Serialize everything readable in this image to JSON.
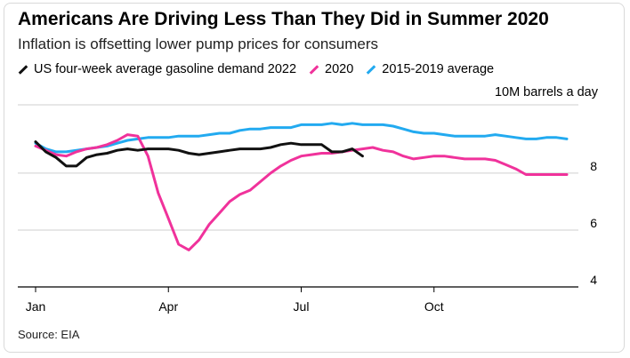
{
  "title": "Americans Are Driving Less Than They Did in Summer 2020",
  "subtitle": "Inflation is offsetting lower pump prices for consumers",
  "source": "Source: EIA",
  "colors": {
    "us2022": "#111111",
    "y2020": "#f0329b",
    "avg": "#22aaf0",
    "grid": "#cfcfcf",
    "axis": "#000000"
  },
  "chart_data": {
    "type": "line",
    "ylabel": "10M barrels a day",
    "ylim": [
      4,
      10.4
    ],
    "yticks": [
      4,
      6,
      8
    ],
    "xlim": [
      1,
      53
    ],
    "xticks": [
      {
        "week": 1,
        "label": "Jan"
      },
      {
        "week": 14,
        "label": "Apr"
      },
      {
        "week": 27,
        "label": "Jul"
      },
      {
        "week": 40,
        "label": "Oct"
      }
    ],
    "legend_position": "top",
    "series": [
      {
        "name": "US four-week average gasoline demand 2022",
        "color_key": "us2022",
        "x": [
          1,
          2,
          3,
          4,
          5,
          6,
          7,
          8,
          9,
          10,
          11,
          12,
          13,
          14,
          15,
          16,
          17,
          18,
          19,
          20,
          21,
          22,
          23,
          24,
          25,
          26,
          27,
          28,
          29,
          30,
          31,
          32,
          33
        ],
        "y": [
          9.1,
          8.75,
          8.55,
          8.25,
          8.25,
          8.55,
          8.65,
          8.7,
          8.8,
          8.85,
          8.8,
          8.85,
          8.85,
          8.85,
          8.8,
          8.7,
          8.65,
          8.7,
          8.75,
          8.8,
          8.85,
          8.85,
          8.85,
          8.9,
          9.0,
          9.05,
          9.0,
          9.0,
          9.0,
          8.75,
          8.75,
          8.85,
          8.6
        ]
      },
      {
        "name": "2020",
        "color_key": "y2020",
        "x": [
          1,
          2,
          3,
          4,
          5,
          6,
          7,
          8,
          9,
          10,
          11,
          12,
          13,
          14,
          15,
          16,
          17,
          18,
          19,
          20,
          21,
          22,
          23,
          24,
          25,
          26,
          27,
          28,
          29,
          30,
          31,
          32,
          33,
          34,
          35,
          36,
          37,
          38,
          39,
          40,
          41,
          42,
          43,
          44,
          45,
          46,
          47,
          48,
          49,
          50,
          51,
          52,
          53
        ],
        "y": [
          8.95,
          8.8,
          8.65,
          8.6,
          8.75,
          8.85,
          8.9,
          9.0,
          9.15,
          9.35,
          9.3,
          8.6,
          7.3,
          6.4,
          5.5,
          5.3,
          5.65,
          6.2,
          6.6,
          7.0,
          7.25,
          7.4,
          7.7,
          8.0,
          8.25,
          8.45,
          8.6,
          8.65,
          8.7,
          8.7,
          8.75,
          8.8,
          8.85,
          8.9,
          8.8,
          8.75,
          8.6,
          8.5,
          8.55,
          8.6,
          8.6,
          8.55,
          8.5,
          8.5,
          8.5,
          8.45,
          8.3,
          8.15,
          7.95,
          7.95,
          7.95,
          7.95,
          7.95
        ]
      },
      {
        "name": "2015-2019 average",
        "color_key": "avg",
        "x": [
          1,
          2,
          3,
          4,
          5,
          6,
          7,
          8,
          9,
          10,
          11,
          12,
          13,
          14,
          15,
          16,
          17,
          18,
          19,
          20,
          21,
          22,
          23,
          24,
          25,
          26,
          27,
          28,
          29,
          30,
          31,
          32,
          33,
          34,
          35,
          36,
          37,
          38,
          39,
          40,
          41,
          42,
          43,
          44,
          45,
          46,
          47,
          48,
          49,
          50,
          51,
          52,
          53
        ],
        "y": [
          9.05,
          8.85,
          8.75,
          8.75,
          8.8,
          8.85,
          8.9,
          8.95,
          9.05,
          9.15,
          9.2,
          9.25,
          9.25,
          9.25,
          9.3,
          9.3,
          9.3,
          9.35,
          9.4,
          9.4,
          9.5,
          9.55,
          9.55,
          9.6,
          9.6,
          9.6,
          9.7,
          9.7,
          9.7,
          9.75,
          9.7,
          9.75,
          9.7,
          9.7,
          9.7,
          9.65,
          9.55,
          9.45,
          9.4,
          9.4,
          9.35,
          9.3,
          9.3,
          9.3,
          9.3,
          9.35,
          9.3,
          9.25,
          9.2,
          9.2,
          9.25,
          9.25,
          9.2
        ]
      }
    ]
  }
}
